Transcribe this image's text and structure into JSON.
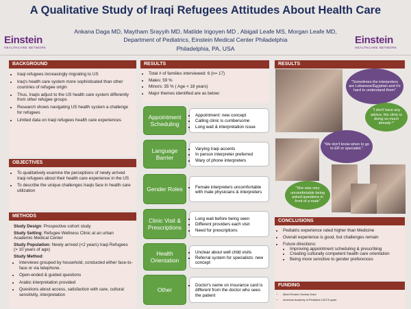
{
  "header": {
    "title": "A Qualitative Study of Iraqi Refugees Attitudes About Health Care",
    "authors": "Ankana Daga MD, Maytham Srayyih MD, Matilde Irigoyen MD , Abigail Leafe MS, Morgan Leafe MD,",
    "department": "Department of Pediatrics, Einstein Medical Center Philadelphia",
    "location": "Philadelphia, PA, USA",
    "logo_left": {
      "name": "Einstein",
      "tagline": "HEALTHCARE NETWORK"
    },
    "logo_right": {
      "name": "Einstein",
      "tagline": "HEALTHCARE NETWORK"
    }
  },
  "background": {
    "heading": "BACKGROUND",
    "items": [
      "Iraqi refugees increasingly migrating to US",
      "Iraq's health care system more sophisticated than other countries of refugee origin",
      "Thus, Iraqis adjust to the US health care system differently from other refugee groups",
      "Research shows navigating US health system a challenge for refugees",
      "Limited data on Iraqi refugees health care experiences"
    ]
  },
  "objectives": {
    "heading": "OBJECTIVES",
    "items": [
      "To qualitatively examine the perceptions of newly arrived Iraqi refugees about their health care experience in the US",
      "To describe the unique challenges Iraqis face in health care utilization"
    ]
  },
  "methods": {
    "heading": "METHODS",
    "fields": [
      {
        "label": "Study Design",
        "text": ": Prospective cohort study"
      },
      {
        "label": "Study Setting",
        "text": ": Refugee Wellness Clinic at an urban Academic Medical Center"
      },
      {
        "label": "Study Population:",
        "text": " Newly arrived (<2 years) Iraqi Refugees (> 10 years of age)"
      },
      {
        "label": "Study Method",
        "text": ":"
      }
    ],
    "items": [
      "Interviews grouped by household, conducted either face-to-face or via telephone.",
      "Open-ended & guided questions",
      "Arabic interpretation provided",
      "Questions about access, satisfaction with care, cultural sensitivity, interpretation"
    ]
  },
  "results": {
    "heading": "RESULTS",
    "items": [
      "Total # of families interviewed: 6 (n= 17)",
      "Males: 59 %",
      "Minors: 35 % ( Age < 18 years)",
      "Major themes identified are as below:"
    ],
    "themes": [
      {
        "name": "Appointment Scheduling",
        "points": [
          "Appointment: new concept",
          "Calling clinic is cumbersome",
          "Long wait & interpretation issue"
        ]
      },
      {
        "name": "Language Barrier",
        "points": [
          "Varying Iraqi accents",
          "In person interpreter preferred",
          "Wary of phone interpreters"
        ]
      },
      {
        "name": "Gender Roles",
        "points": [
          "Female interpreters uncomfortable with male physicians & interpreters"
        ]
      },
      {
        "name": "Clinic Visit & Prescriptions",
        "points": [
          "Long wait before being seen",
          "Different providers each visit",
          "Need for prescriptions"
        ]
      },
      {
        "name": "Health Orientation",
        "points": [
          "Unclear about well child visits",
          "Referral system for specialists: new concept"
        ]
      },
      {
        "name": "Other",
        "points": [
          "Doctor's name on insurance card is different from the doctor who sees the patient"
        ]
      }
    ]
  },
  "photos": {
    "heading": "RESULTS",
    "quotes": [
      "\"Sometimes the interpreters are Lebanese/Egyptian and it's hard to understand them\"",
      "\"I don't have any advice, the clinic is doing so much already !\"",
      "\"We don't know when to go to ER or specialist.\"",
      "\"She was very uncomfortable being asked questions in front of a male\""
    ]
  },
  "conclusions": {
    "heading": "CONCLUSIONS",
    "items": [
      "Pediatric experience rated higher than Medicine",
      "Overall experience is good, but challenges remain",
      "Future directions:"
    ],
    "sub_items": [
      "Improving appointment scheduling & prescribing",
      "Creating culturally competent health care orientation",
      "Being more sensitive to gender preferences"
    ]
  },
  "funding": {
    "heading": "FUNDING",
    "items": [
      "Albert Einstein Society Grant",
      "American Academy of Pediatrics CATCH grant"
    ]
  }
}
